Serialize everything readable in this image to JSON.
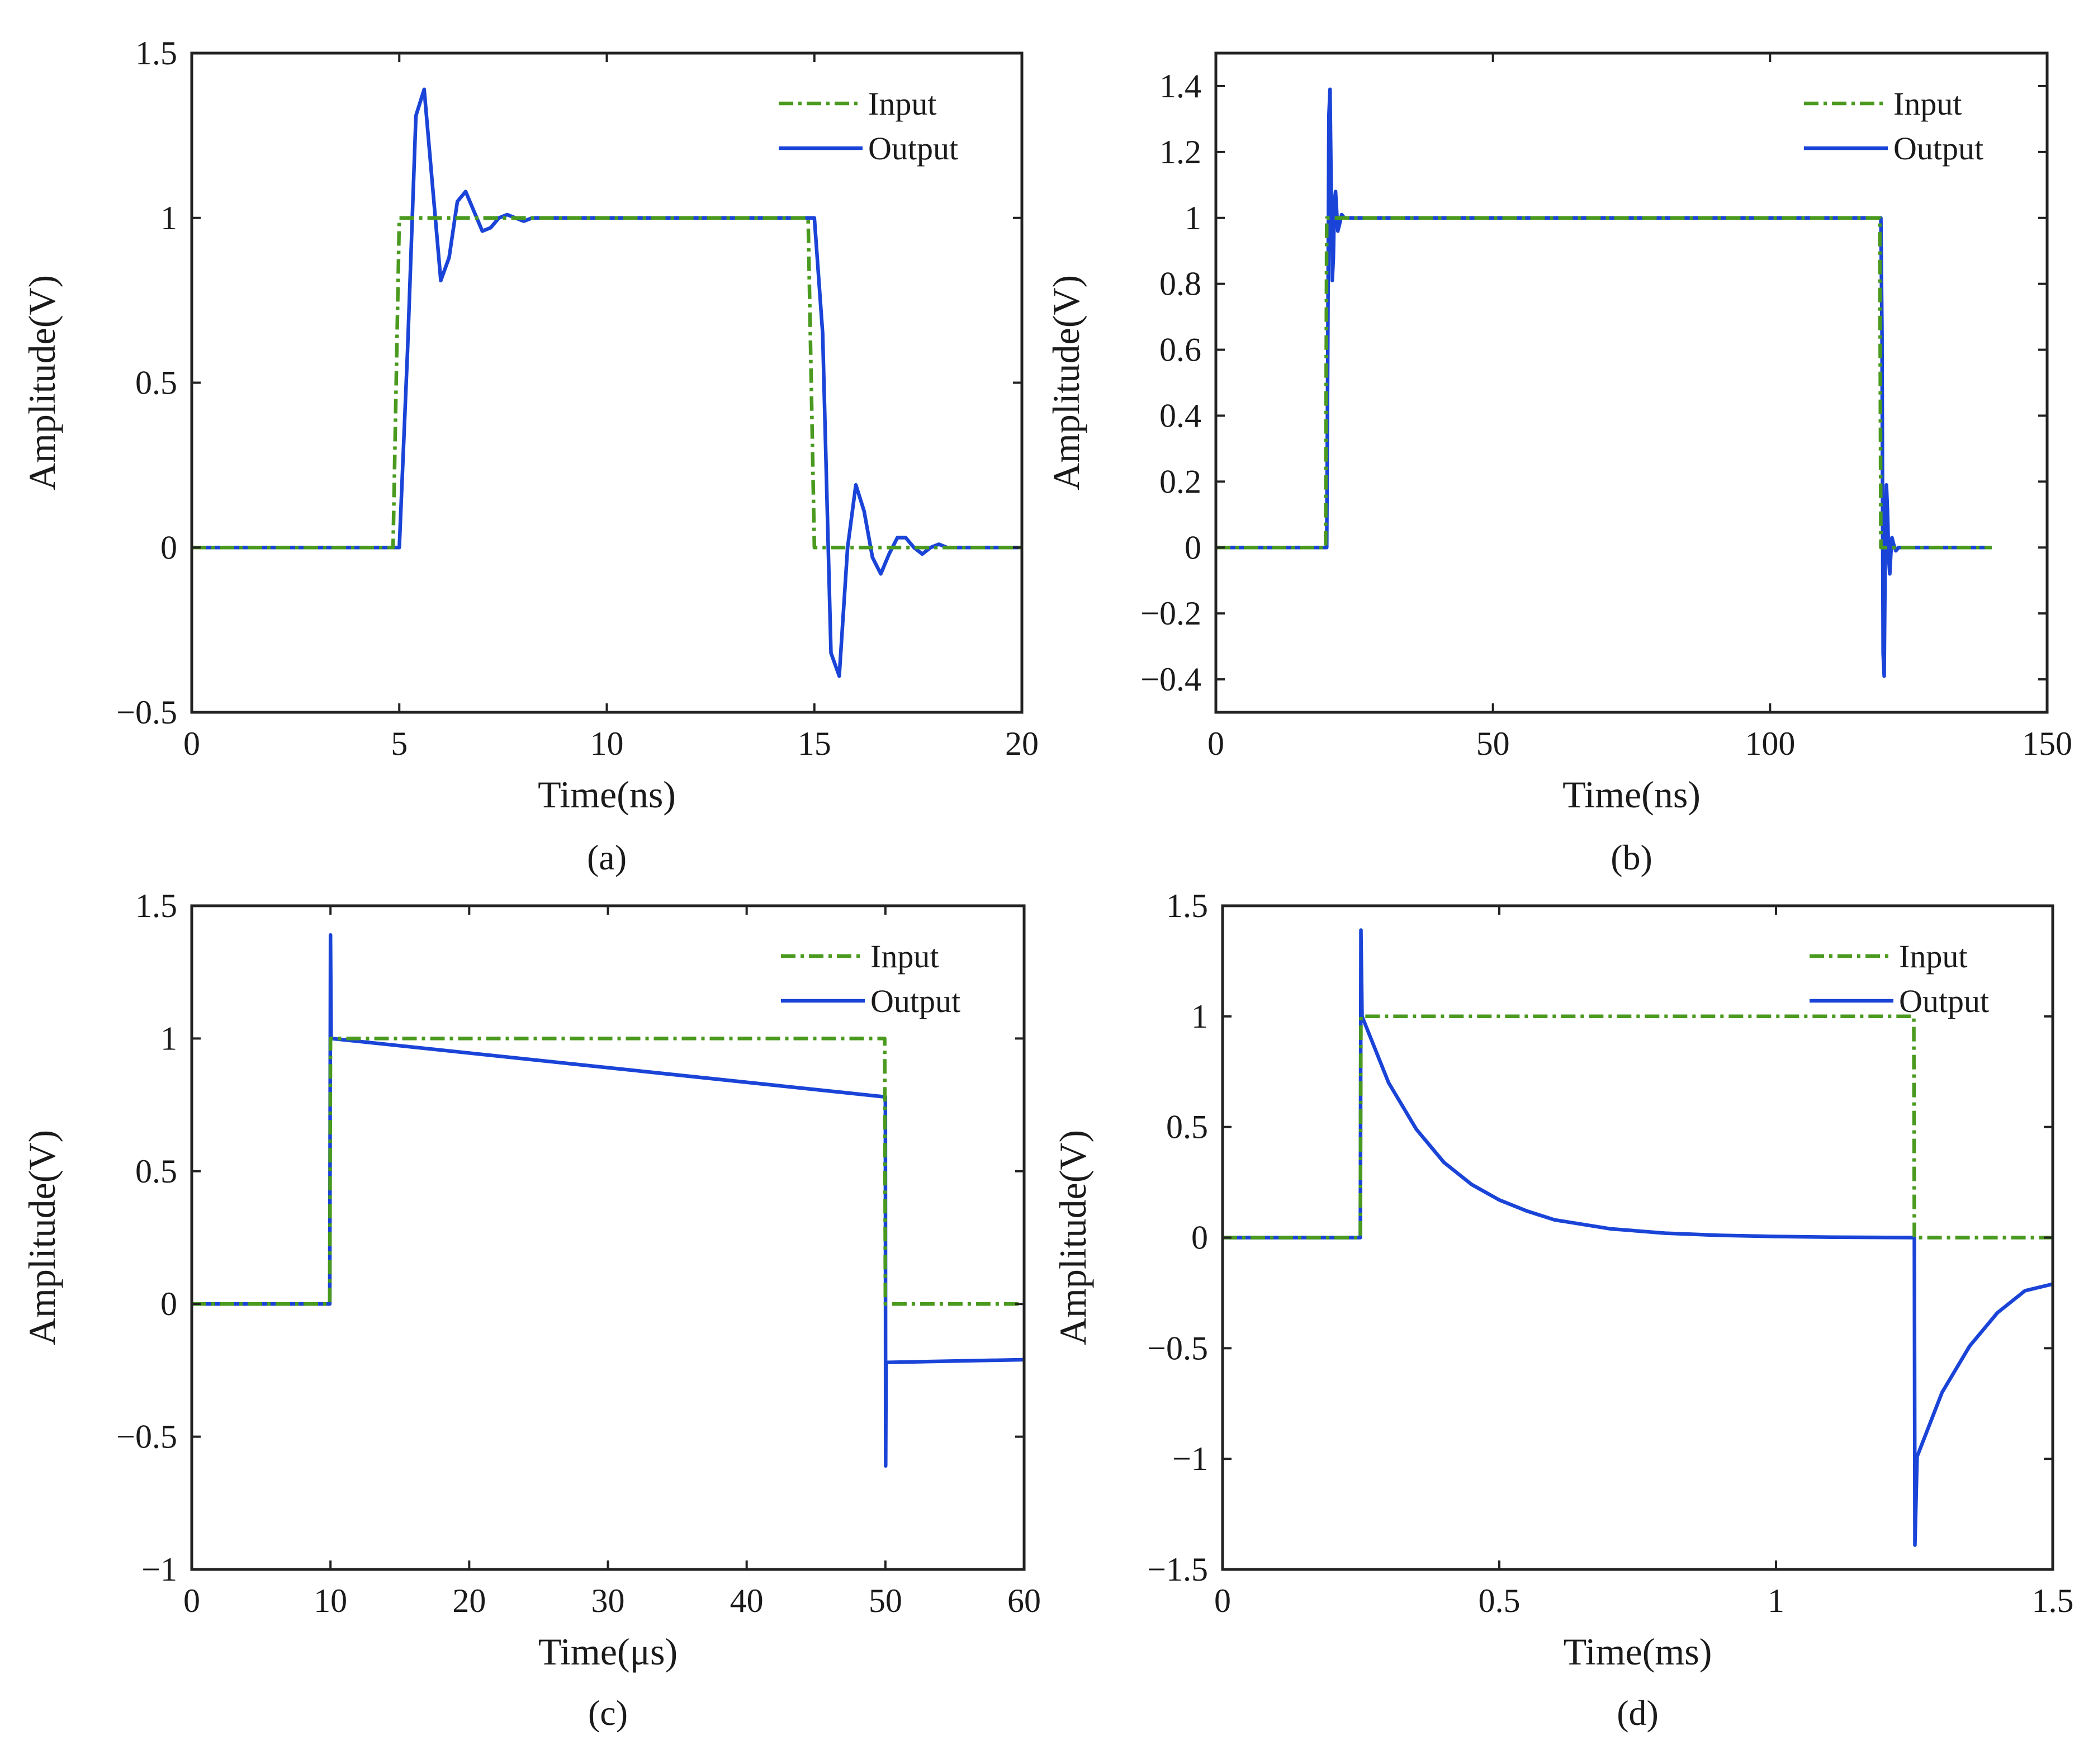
{
  "legend_entries": [
    "Input",
    "Output"
  ],
  "series_colors": {
    "Input": "#4a9a1f",
    "Output": "#1a44d8"
  },
  "chart_data": [
    {
      "id": "a",
      "caption": "(a)",
      "type": "line",
      "xlabel": "Time(ns)",
      "ylabel": "Amplitude(V)",
      "xlim": [
        0,
        20
      ],
      "ylim": [
        -0.5,
        1.5
      ],
      "xticks": [
        0,
        5,
        10,
        15,
        20
      ],
      "xtick_labels": [
        "0",
        "5",
        "10",
        "15",
        "20"
      ],
      "yticks": [
        -0.5,
        0,
        0.5,
        1,
        1.5
      ],
      "ytick_labels": [
        "−0.5",
        "0",
        "0.5",
        "1",
        "1.5"
      ],
      "legend": "top-right",
      "series": [
        {
          "name": "Input",
          "style": "dash-dot",
          "x": [
            0,
            4.85,
            5.0,
            14.85,
            15.0,
            20
          ],
          "y": [
            0,
            0,
            1,
            1,
            0,
            0
          ]
        },
        {
          "name": "Output",
          "style": "solid",
          "x": [
            0,
            5.0,
            5.2,
            5.4,
            5.6,
            5.8,
            6.0,
            6.2,
            6.4,
            6.6,
            6.8,
            7.0,
            7.2,
            7.4,
            7.6,
            7.8,
            8.0,
            8.2,
            8.5,
            9.0,
            15.0,
            15.2,
            15.4,
            15.6,
            15.8,
            16.0,
            16.2,
            16.4,
            16.6,
            16.8,
            17.0,
            17.2,
            17.4,
            17.6,
            17.8,
            18.0,
            18.2,
            18.5,
            19.0,
            20
          ],
          "y": [
            0,
            0,
            0.6,
            1.31,
            1.39,
            1.1,
            0.81,
            0.88,
            1.05,
            1.08,
            1.02,
            0.96,
            0.97,
            1.0,
            1.01,
            1.0,
            0.99,
            1.0,
            1.0,
            1.0,
            1.0,
            0.65,
            -0.32,
            -0.39,
            0.0,
            0.19,
            0.11,
            -0.03,
            -0.08,
            -0.02,
            0.03,
            0.03,
            0.0,
            -0.02,
            0.0,
            0.01,
            0.0,
            0.0,
            0.0,
            0.0
          ]
        }
      ]
    },
    {
      "id": "b",
      "caption": "(b)",
      "type": "line",
      "xlabel": "Time(ns)",
      "ylabel": "Amplitude(V)",
      "xlim": [
        0,
        150
      ],
      "ylim": [
        -0.5,
        1.5
      ],
      "xticks": [
        0,
        50,
        100,
        150
      ],
      "xtick_labels": [
        "0",
        "50",
        "100",
        "150"
      ],
      "yticks": [
        -0.4,
        -0.2,
        0,
        0.2,
        0.4,
        0.6,
        0.8,
        1,
        1.2,
        1.4
      ],
      "ytick_labels": [
        "−0.4",
        "−0.2",
        "0",
        "0.2",
        "0.4",
        "0.6",
        "0.8",
        "1",
        "1.2",
        "1.4"
      ],
      "legend": "top-right",
      "series": [
        {
          "name": "Input",
          "style": "dash-dot",
          "x": [
            0,
            19.8,
            20.0,
            119.8,
            120.0,
            140
          ],
          "y": [
            0,
            0,
            1,
            1,
            0,
            0
          ]
        },
        {
          "name": "Output",
          "style": "solid",
          "x": [
            0,
            20.0,
            20.2,
            20.4,
            20.6,
            20.8,
            21.0,
            21.2,
            21.4,
            21.6,
            21.8,
            22.0,
            22.3,
            22.7,
            23.2,
            24,
            120.0,
            120.2,
            120.4,
            120.6,
            120.8,
            121.0,
            121.2,
            121.4,
            121.6,
            121.8,
            122.0,
            122.3,
            122.7,
            123.2,
            124,
            140
          ],
          "y": [
            0,
            0,
            0.6,
            1.31,
            1.39,
            1.1,
            0.81,
            0.88,
            1.05,
            1.08,
            1.02,
            0.96,
            0.98,
            1.01,
            1.0,
            1.0,
            1.0,
            0.65,
            -0.32,
            -0.39,
            0.0,
            0.19,
            0.11,
            -0.03,
            -0.08,
            -0.02,
            0.03,
            0.01,
            -0.01,
            0.0,
            0.0,
            0.0
          ]
        }
      ]
    },
    {
      "id": "c",
      "caption": "(c)",
      "type": "line",
      "xlabel": "Time(μs)",
      "ylabel": "Amplitude(V)",
      "xlim": [
        0,
        60
      ],
      "ylim": [
        -1,
        1.5
      ],
      "xticks": [
        0,
        10,
        20,
        30,
        40,
        50,
        60
      ],
      "xtick_labels": [
        "0",
        "10",
        "20",
        "30",
        "40",
        "50",
        "60"
      ],
      "yticks": [
        -1,
        -0.5,
        0,
        0.5,
        1,
        1.5
      ],
      "ytick_labels": [
        "−1",
        "−0.5",
        "0",
        "0.5",
        "1",
        "1.5"
      ],
      "legend": "top-right",
      "series": [
        {
          "name": "Input",
          "style": "dash-dot",
          "x": [
            0,
            9.95,
            10.0,
            49.95,
            50.0,
            60
          ],
          "y": [
            0,
            0,
            1,
            1,
            0,
            0
          ]
        },
        {
          "name": "Output",
          "style": "solid",
          "x": [
            0,
            9.95,
            10.0,
            10.05,
            50.0,
            50.02,
            50.05,
            60
          ],
          "y": [
            0,
            0,
            1.39,
            1.0,
            0.78,
            -0.61,
            -0.22,
            -0.21
          ]
        }
      ]
    },
    {
      "id": "d",
      "caption": "(d)",
      "type": "line",
      "xlabel": "Time(ms)",
      "ylabel": "Amplitude(V)",
      "xlim": [
        0,
        1.5
      ],
      "ylim": [
        -1.5,
        1.5
      ],
      "xticks": [
        0,
        0.5,
        1,
        1.5
      ],
      "xtick_labels": [
        "0",
        "0.5",
        "1",
        "1.5"
      ],
      "yticks": [
        -1.5,
        -1,
        -0.5,
        0,
        0.5,
        1,
        1.5
      ],
      "ytick_labels": [
        "−1.5",
        "−1",
        "−0.5",
        "0",
        "0.5",
        "1",
        "1.5"
      ],
      "legend": "top-right",
      "series": [
        {
          "name": "Input",
          "style": "dash-dot",
          "x": [
            0,
            0.249,
            0.25,
            1.249,
            1.25,
            1.5
          ],
          "y": [
            0,
            0,
            1,
            1,
            0,
            0
          ]
        },
        {
          "name": "Output",
          "style": "solid",
          "x": [
            0,
            0.249,
            0.25,
            0.252,
            0.3,
            0.35,
            0.4,
            0.45,
            0.5,
            0.55,
            0.6,
            0.7,
            0.8,
            0.9,
            1.0,
            1.1,
            1.25,
            1.251,
            1.255,
            1.3,
            1.35,
            1.4,
            1.45,
            1.5
          ],
          "y": [
            0,
            0,
            1.39,
            1.0,
            0.7,
            0.49,
            0.34,
            0.24,
            0.17,
            0.12,
            0.08,
            0.04,
            0.02,
            0.01,
            0.005,
            0.002,
            0.0,
            -1.39,
            -0.99,
            -0.7,
            -0.49,
            -0.34,
            -0.24,
            -0.21
          ]
        }
      ]
    }
  ]
}
